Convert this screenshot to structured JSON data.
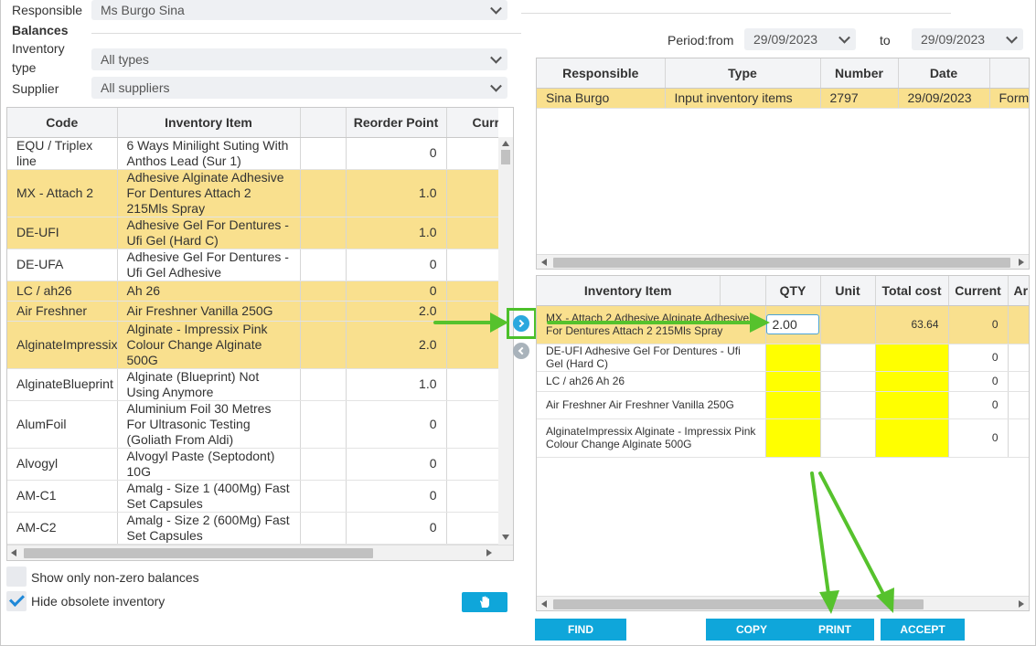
{
  "filters": {
    "responsible_label": "Responsible",
    "responsible_value": "Ms Burgo Sina",
    "balances_label": "Balances",
    "inventory_type_label_1": "Inventory",
    "inventory_type_label_2": "type",
    "inventory_type_value": "All types",
    "supplier_label": "Supplier",
    "supplier_value": "All suppliers"
  },
  "period": {
    "from_label": "Period:from",
    "from_value": "29/09/2023",
    "to_label": "to",
    "to_value": "29/09/2023"
  },
  "inventory_grid": {
    "columns": [
      "Code",
      "Inventory Item",
      "",
      "Reorder Point",
      "Curr"
    ],
    "rows": [
      {
        "code": "EQU / Triplex line",
        "item": "6 Ways Minilight Suting With Anthos Lead (Sur 1)",
        "reorder": "0",
        "hl": false,
        "red": false
      },
      {
        "code": "MX - Attach 2",
        "item": "Adhesive Alginate Adhesive For Dentures Attach 2 215Mls Spray",
        "reorder": "1.0",
        "hl": true,
        "red": false
      },
      {
        "code": "DE-UFI",
        "item": "Adhesive Gel For Dentures - Ufi Gel (Hard C)",
        "reorder": "1.0",
        "hl": true,
        "red": false
      },
      {
        "code": "DE-UFA",
        "item": "Adhesive Gel For Dentures - Ufi Gel Adhesive",
        "reorder": "0",
        "hl": false,
        "red": false
      },
      {
        "code": "LC / ah26",
        "item": "Ah 26",
        "reorder": "0",
        "hl": true,
        "red": false
      },
      {
        "code": "Air Freshner",
        "item": "Air Freshner Vanilla 250G",
        "reorder": "2.0",
        "hl": true,
        "red": false
      },
      {
        "code": "AlginateImpressix",
        "item": "Alginate - Impressix Pink Colour Change Alginate 500G",
        "reorder": "2.0",
        "hl": true,
        "red": false
      },
      {
        "code": "AlginateBlueprint",
        "item": "Alginate (Blueprint) Not Using Anymore",
        "reorder": "1.0",
        "hl": false,
        "red": true
      },
      {
        "code": "AlumFoil",
        "item": "Aluminium Foil 30 Metres For Ultrasonic Testing (Goliath From Aldi)",
        "reorder": "0",
        "hl": false,
        "red": true
      },
      {
        "code": "Alvogyl",
        "item": "Alvogyl Paste (Septodont) 10G",
        "reorder": "0",
        "hl": false,
        "red": true
      },
      {
        "code": "AM-C1",
        "item": "Amalg - Size 1 (400Mg) Fast Set Capsules",
        "reorder": "0",
        "hl": false,
        "red": false
      },
      {
        "code": "AM-C2",
        "item": "Amalg - Size 2 (600Mg) Fast Set Capsules",
        "reorder": "0",
        "hl": false,
        "red": false
      }
    ]
  },
  "options": {
    "nonzero_label": "Show only non-zero balances",
    "nonzero_checked": false,
    "obsolete_label": "Hide obsolete inventory",
    "obsolete_checked": true
  },
  "docs_grid": {
    "columns": [
      "Responsible",
      "Type",
      "Number",
      "Date",
      ""
    ],
    "rows": [
      {
        "responsible": "Sina Burgo",
        "type": "Input inventory items",
        "number": "2797",
        "date": "29/09/2023",
        "extra": "Form"
      }
    ]
  },
  "lines_grid": {
    "columns": [
      "Inventory Item",
      "",
      "QTY",
      "Unit",
      "Total cost",
      "Current",
      "Ar"
    ],
    "rows": [
      {
        "item": "MX - Attach 2 Adhesive Alginate Adhesive For Dentures Attach 2 215Mls Spray",
        "qty": "2.00",
        "unit": "",
        "total": "63.64",
        "current": "0",
        "editing": true
      },
      {
        "item": "DE-UFI Adhesive Gel For Dentures - Ufi Gel (Hard C)",
        "qty": "",
        "unit": "",
        "total": "",
        "current": "0",
        "editing": false
      },
      {
        "item": "LC / ah26 Ah 26",
        "qty": "",
        "unit": "",
        "total": "",
        "current": "0",
        "editing": false
      },
      {
        "item": "Air Freshner Air Freshner Vanilla 250G",
        "qty": "",
        "unit": "",
        "total": "",
        "current": "0",
        "editing": false
      },
      {
        "item": "AlginateImpressix Alginate - Impressix Pink Colour Change Alginate 500G",
        "qty": "",
        "unit": "",
        "total": "",
        "current": "0",
        "editing": false
      }
    ]
  },
  "buttons": {
    "find": "FIND",
    "copy": "COPY",
    "print": "PRINT",
    "accept": "ACCEPT"
  },
  "colors": {
    "accent": "#0fa6da",
    "highlight_row": "#f9e08e",
    "missing_cell": "#ffff00",
    "annotation_arrow": "#56c22d",
    "negative_value": "#d9262b"
  }
}
